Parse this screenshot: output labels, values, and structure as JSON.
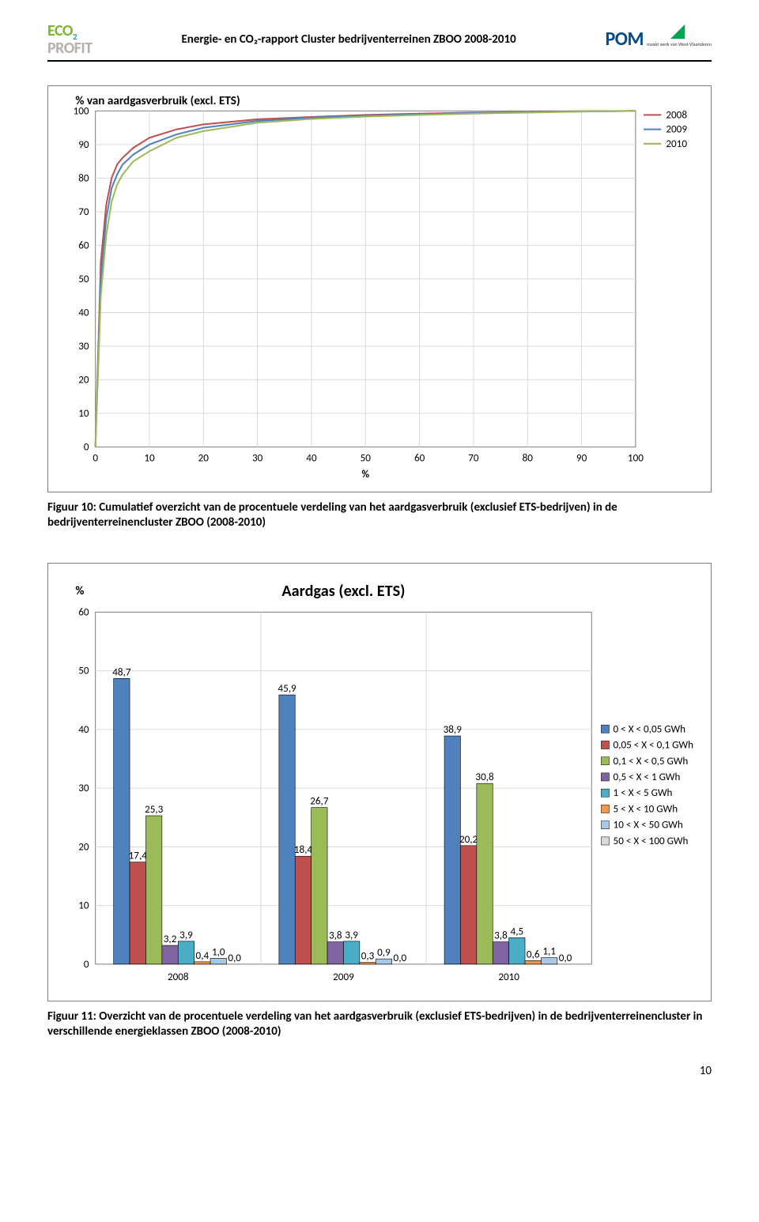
{
  "header": {
    "doc_title": "Energie- en CO₂-rapport Cluster bedrijventerreinen ZBOO 2008-2010",
    "logo_left_top": "ECO",
    "logo_left_top_sub": "2",
    "logo_left_bottom": "PROFIT",
    "logo_right_text": "POM",
    "logo_right_sub": "maakt werk van West-Vlaanderen"
  },
  "line_chart": {
    "ytitle": "% van aardgasverbruik (excl. ETS)",
    "xtitle": "%",
    "xlim": [
      0,
      100
    ],
    "xtick_step": 10,
    "ylim": [
      0,
      100
    ],
    "ytick_step": 10,
    "background": "#ffffff",
    "grid_color": "#d9d9d9",
    "series": [
      {
        "label": "2008",
        "color": "#c0504d",
        "width": 2,
        "x": [
          0,
          1,
          2,
          3,
          4,
          5,
          7,
          10,
          15,
          20,
          30,
          40,
          50,
          60,
          70,
          80,
          90,
          100
        ],
        "y": [
          0,
          55,
          72,
          80,
          84,
          86,
          89,
          92,
          94.5,
          96,
          97.5,
          98.2,
          98.8,
          99.2,
          99.5,
          99.7,
          99.9,
          100
        ]
      },
      {
        "label": "2009",
        "color": "#4f81bd",
        "width": 2,
        "x": [
          0,
          1,
          2,
          3,
          4,
          5,
          7,
          10,
          15,
          20,
          30,
          40,
          50,
          60,
          70,
          80,
          90,
          100
        ],
        "y": [
          0,
          50,
          68,
          77,
          81,
          84,
          87,
          90,
          93,
          95,
          97,
          98,
          98.6,
          99,
          99.4,
          99.6,
          99.8,
          100
        ]
      },
      {
        "label": "2010",
        "color": "#9bbb59",
        "width": 2,
        "x": [
          0,
          1,
          2,
          3,
          4,
          5,
          7,
          10,
          15,
          20,
          30,
          40,
          50,
          60,
          70,
          80,
          90,
          100
        ],
        "y": [
          0,
          45,
          63,
          73,
          78,
          81,
          85,
          88,
          92,
          94,
          96.5,
          97.6,
          98.3,
          98.8,
          99.2,
          99.5,
          99.8,
          100
        ]
      }
    ]
  },
  "caption1": "Figuur 10: Cumulatief overzicht van de procentuele verdeling van het aardgasverbruik (exclusief ETS-bedrijven) in de bedrijventerreinencluster ZBOO (2008-2010)",
  "bar_chart": {
    "title": "Aardgas (excl. ETS)",
    "ytitle": "%",
    "ylim": [
      0,
      60
    ],
    "ytick_step": 10,
    "background": "#ffffff",
    "grid_color": "#d9d9d9",
    "bar_border": "#000000",
    "categories": [
      "2008",
      "2009",
      "2010"
    ],
    "classes": [
      {
        "label": "0 < X < 0,05 GWh",
        "color": "#4f81bd"
      },
      {
        "label": "0,05 < X < 0,1 GWh",
        "color": "#c0504d"
      },
      {
        "label": "0,1 < X < 0,5 GWh",
        "color": "#9bbb59"
      },
      {
        "label": "0,5 < X < 1 GWh",
        "color": "#8064a2"
      },
      {
        "label": "1 < X < 5 GWh",
        "color": "#4bacc6"
      },
      {
        "label": "5 < X < 10 GWh",
        "color": "#f79646"
      },
      {
        "label": "10 < X < 50 GWh",
        "color": "#a6c7e6"
      },
      {
        "label": "50 < X < 100 GWh",
        "color": "#d9d9d9"
      }
    ],
    "values": [
      [
        48.7,
        17.4,
        25.3,
        3.2,
        3.9,
        0.4,
        1.0,
        0.0
      ],
      [
        45.9,
        18.4,
        26.7,
        3.8,
        3.9,
        0.3,
        0.9,
        0.0
      ],
      [
        38.9,
        20.2,
        30.8,
        3.8,
        4.5,
        0.6,
        1.1,
        0.0
      ]
    ],
    "value_labels": [
      [
        "48,7",
        "17,4",
        "25,3",
        "3,2",
        "3,9",
        "0,4",
        "1,0",
        "0,0"
      ],
      [
        "45,9",
        "18,4",
        "26,7",
        "3,8",
        "3,9",
        "0,3",
        "0,9",
        "0,0"
      ],
      [
        "38,9",
        "20,2",
        "30,8",
        "3,8",
        "4,5",
        "0,6",
        "1,1",
        "0,0"
      ]
    ],
    "label_fontsize": 12
  },
  "caption2": "Figuur 11: Overzicht van de procentuele verdeling van het aardgasverbruik (exclusief ETS-bedrijven) in de bedrijventerreinencluster in verschillende energieklassen ZBOO (2008-2010)",
  "page_number": "10"
}
